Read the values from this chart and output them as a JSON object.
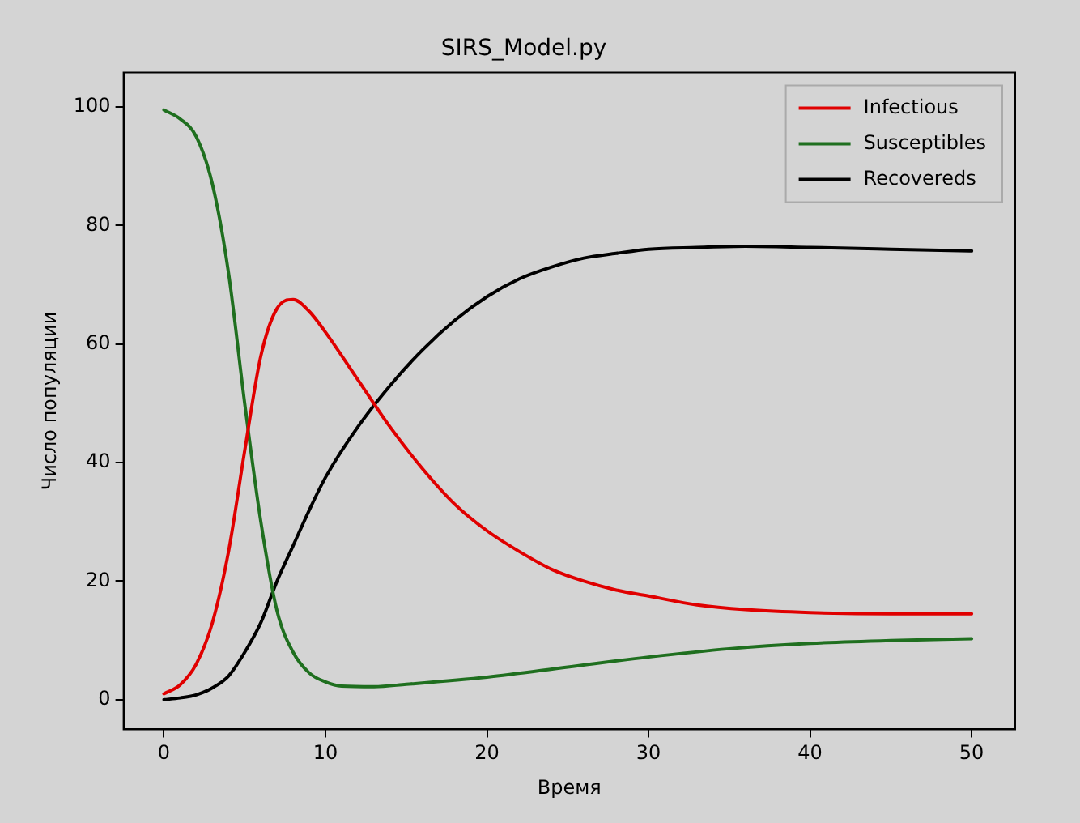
{
  "chart_data": {
    "type": "line",
    "title": "SIRS_Model.py",
    "xlabel": "Время",
    "ylabel": "Число популяции",
    "xlim": [
      -2.5,
      52.7
    ],
    "xticks": [
      0,
      10,
      20,
      30,
      40,
      50
    ],
    "ylim": [
      -5,
      105.8
    ],
    "yticks": [
      0,
      20,
      40,
      60,
      80,
      100
    ],
    "grid": false,
    "legend": "top right",
    "marker": "none",
    "line_style": "solid",
    "series": [
      {
        "name": "Infectious",
        "color": "#e00000",
        "x": [
          0,
          1,
          2,
          3,
          4,
          5,
          6,
          7,
          8,
          9,
          10,
          12,
          14,
          16,
          18,
          20,
          22,
          24,
          26,
          28,
          30,
          33,
          36,
          40,
          45,
          50
        ],
        "values": [
          1,
          2.5,
          6,
          13,
          25,
          42,
          58,
          66,
          67.5,
          65.5,
          62,
          54,
          46,
          39,
          33,
          28.5,
          25,
          22,
          20,
          18.5,
          17.5,
          16,
          15.2,
          14.7,
          14.5,
          14.5
        ]
      },
      {
        "name": "Susceptibles",
        "color": "#1f6f1f",
        "x": [
          0,
          1,
          2,
          3,
          4,
          5,
          6,
          7,
          8,
          9,
          10,
          11,
          13,
          15,
          20,
          25,
          30,
          35,
          40,
          45,
          50
        ],
        "values": [
          99.5,
          98,
          95,
          87,
          72,
          50,
          30,
          15,
          8,
          4.5,
          3,
          2.3,
          2.2,
          2.6,
          3.8,
          5.5,
          7.2,
          8.6,
          9.5,
          10,
          10.3
        ]
      },
      {
        "name": "Recovereds",
        "color": "#000000",
        "x": [
          0,
          1,
          2,
          3,
          4,
          5,
          6,
          7,
          8,
          9,
          10,
          12,
          14,
          16,
          18,
          20,
          22,
          24,
          26,
          28,
          30,
          33,
          36,
          40,
          45,
          50
        ],
        "values": [
          0,
          0.3,
          0.8,
          2,
          4,
          8,
          13,
          20,
          26,
          32,
          37.5,
          46,
          53,
          59,
          64,
          68,
          71,
          73,
          74.5,
          75.3,
          76,
          76.3,
          76.5,
          76.3,
          76,
          75.7
        ]
      }
    ]
  }
}
